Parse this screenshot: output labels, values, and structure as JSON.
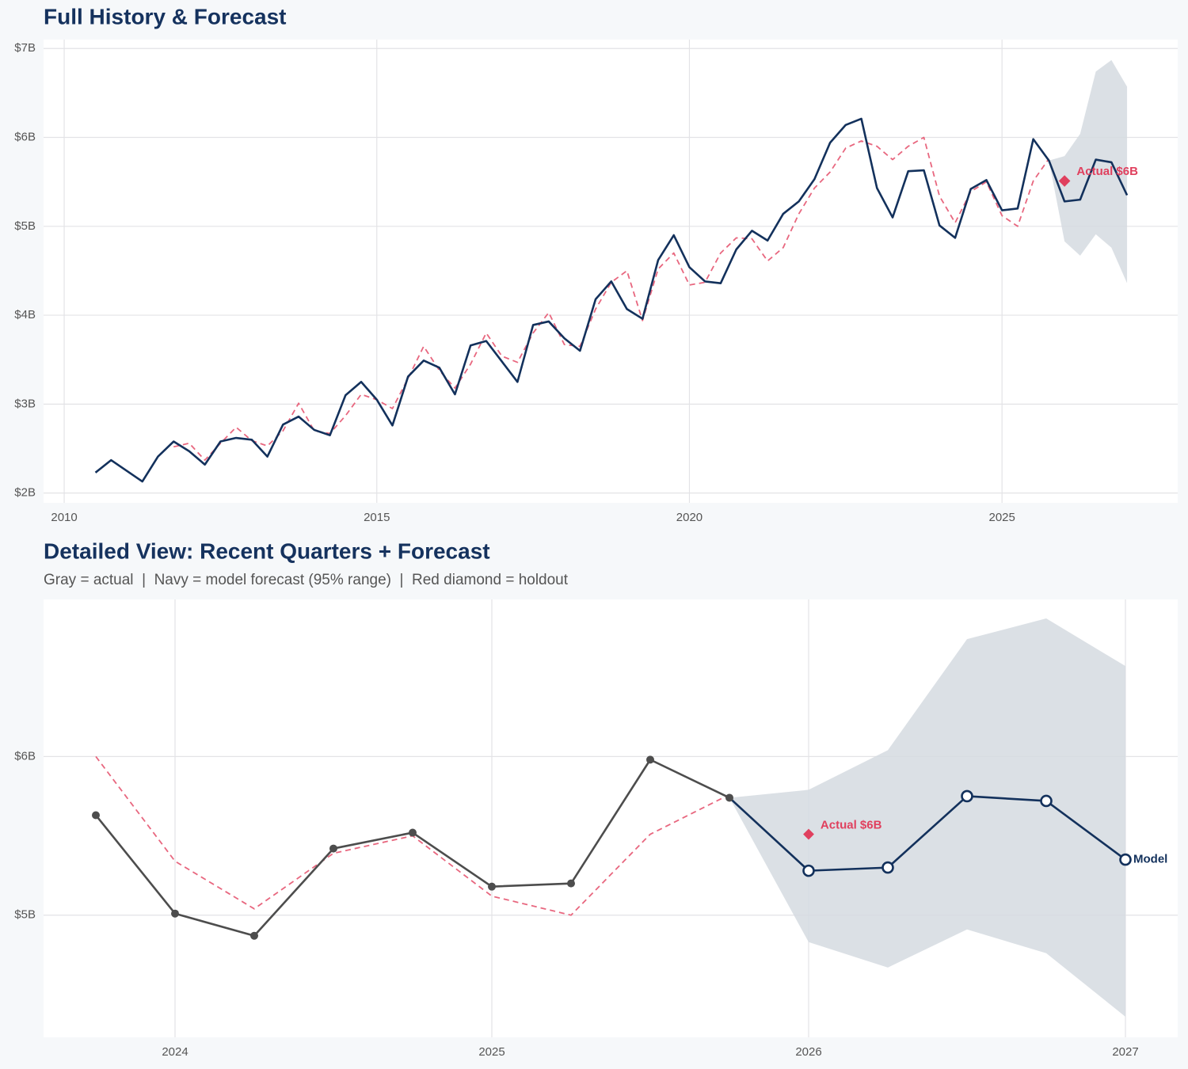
{
  "chart_data": [
    {
      "type": "line",
      "title": "Full History & Forecast",
      "xlim": [
        2009.67,
        2027.81
      ],
      "xticks": [
        2010,
        2015,
        2020,
        2025
      ],
      "ylim": [
        1.89,
        7.1
      ],
      "yticks": [
        {
          "value": 2,
          "label": "$2B"
        },
        {
          "value": 3,
          "label": "$3B"
        },
        {
          "value": 4,
          "label": "$4B"
        },
        {
          "value": 5,
          "label": "$5B"
        },
        {
          "value": 6,
          "label": "$6B"
        },
        {
          "value": 7,
          "label": "$7B"
        }
      ],
      "grid": true,
      "band": {
        "color": "#d5dae1",
        "x": [
          2025.75,
          2026,
          2026.25,
          2026.5,
          2026.75,
          2027
        ],
        "lower": [
          5.74,
          4.83,
          4.67,
          4.91,
          4.76,
          4.36
        ],
        "upper": [
          5.74,
          5.79,
          6.04,
          6.74,
          6.87,
          6.57
        ]
      },
      "series": [
        {
          "color": "#e8677f",
          "style": "dashed",
          "x": [
            2011.75,
            2012,
            2012.25,
            2012.5,
            2012.75,
            2013,
            2013.25,
            2013.5,
            2013.75,
            2014,
            2014.25,
            2014.5,
            2014.75,
            2015,
            2015.25,
            2015.5,
            2015.75,
            2016,
            2016.25,
            2016.5,
            2016.75,
            2017,
            2017.25,
            2017.5,
            2017.75,
            2018,
            2018.25,
            2018.5,
            2018.75,
            2019,
            2019.25,
            2019.5,
            2019.75,
            2020,
            2020.25,
            2020.5,
            2020.75,
            2021,
            2021.25,
            2021.5,
            2021.75,
            2022,
            2022.25,
            2022.5,
            2022.75,
            2023,
            2023.25,
            2023.5,
            2023.75,
            2024,
            2024.25,
            2024.5,
            2024.75,
            2025,
            2025.25,
            2025.5,
            2025.75
          ],
          "values": [
            2.52,
            2.56,
            2.37,
            2.56,
            2.74,
            2.59,
            2.53,
            2.7,
            3.01,
            2.7,
            2.67,
            2.87,
            3.11,
            3.05,
            2.95,
            3.29,
            3.65,
            3.38,
            3.18,
            3.45,
            3.8,
            3.54,
            3.47,
            3.8,
            4.03,
            3.67,
            3.65,
            4.07,
            4.37,
            4.5,
            3.94,
            4.52,
            4.7,
            4.34,
            4.37,
            4.7,
            4.87,
            4.86,
            4.61,
            4.76,
            5.14,
            5.43,
            5.61,
            5.88,
            5.96,
            5.9,
            5.75,
            5.9,
            6.0,
            5.34,
            5.04,
            5.39,
            5.5,
            5.12,
            5.0,
            5.51,
            5.76
          ]
        },
        {
          "color": "#13315c",
          "x": [
            2010.5,
            2010.75,
            2011,
            2011.25,
            2011.5,
            2011.75,
            2012,
            2012.25,
            2012.5,
            2012.75,
            2013,
            2013.25,
            2013.5,
            2013.75,
            2014,
            2014.25,
            2014.5,
            2014.75,
            2015,
            2015.25,
            2015.5,
            2015.75,
            2016,
            2016.25,
            2016.5,
            2016.75,
            2017,
            2017.25,
            2017.5,
            2017.75,
            2018,
            2018.25,
            2018.5,
            2018.75,
            2019,
            2019.25,
            2019.5,
            2019.75,
            2020,
            2020.25,
            2020.5,
            2020.75,
            2021,
            2021.25,
            2021.5,
            2021.75,
            2022,
            2022.25,
            2022.5,
            2022.75,
            2023,
            2023.25,
            2023.5,
            2023.75,
            2024,
            2024.25,
            2024.5,
            2024.75,
            2025,
            2025.25,
            2025.5,
            2025.75,
            2026,
            2026.25,
            2026.5,
            2026.75,
            2027
          ],
          "values": [
            2.23,
            2.37,
            2.25,
            2.13,
            2.41,
            2.58,
            2.47,
            2.32,
            2.58,
            2.62,
            2.6,
            2.41,
            2.77,
            2.86,
            2.71,
            2.65,
            3.1,
            3.25,
            3.05,
            2.76,
            3.31,
            3.49,
            3.41,
            3.11,
            3.66,
            3.71,
            3.48,
            3.25,
            3.89,
            3.93,
            3.74,
            3.6,
            4.18,
            4.38,
            4.07,
            3.96,
            4.62,
            4.9,
            4.54,
            4.38,
            4.36,
            4.74,
            4.95,
            4.84,
            5.14,
            5.28,
            5.53,
            5.94,
            6.14,
            6.21,
            5.43,
            5.1,
            5.62,
            5.63,
            5.01,
            4.87,
            5.42,
            5.52,
            5.18,
            5.2,
            5.98,
            5.74,
            5.28,
            5.3,
            5.75,
            5.72,
            5.35
          ]
        }
      ],
      "annotation": {
        "x": 2026,
        "value": 5.51,
        "label": "Actual $6B",
        "color": "#e0405e"
      }
    },
    {
      "type": "line",
      "title": "Detailed View: Recent Quarters + Forecast",
      "subtitle": "Gray = actual  |  Navy = model forecast (95% range)  |  Red diamond = holdout",
      "xlim": [
        2023.585,
        2027.165
      ],
      "xticks": [
        2024,
        2025,
        2026,
        2027
      ],
      "ylim": [
        4.23,
        6.99
      ],
      "yticks": [
        {
          "value": 5,
          "label": "$5B"
        },
        {
          "value": 6,
          "label": "$6B"
        }
      ],
      "grid": true,
      "band": {
        "color": "#d5dae1",
        "x": [
          2025.75,
          2026,
          2026.25,
          2026.5,
          2026.75,
          2027
        ],
        "lower": [
          5.74,
          4.83,
          4.67,
          4.91,
          4.76,
          4.36
        ],
        "upper": [
          5.74,
          5.79,
          6.04,
          6.74,
          6.87,
          6.57
        ]
      },
      "series": [
        {
          "color": "#e8677f",
          "style": "dashed",
          "x": [
            2023.75,
            2024,
            2024.25,
            2024.5,
            2024.75,
            2025,
            2025.25,
            2025.5,
            2025.75
          ],
          "values": [
            6.0,
            5.34,
            5.04,
            5.39,
            5.5,
            5.12,
            5.0,
            5.51,
            5.76
          ]
        },
        {
          "color": "#13315c",
          "marker": "open",
          "name": "Model",
          "x": [
            2025.75,
            2026,
            2026.25,
            2026.5,
            2026.75,
            2027
          ],
          "values": [
            5.74,
            5.28,
            5.3,
            5.75,
            5.72,
            5.35
          ]
        },
        {
          "color": "#4d4d4d",
          "marker": "filled",
          "x": [
            2023.75,
            2024,
            2024.25,
            2024.5,
            2024.75,
            2025,
            2025.25,
            2025.5,
            2025.75
          ],
          "values": [
            5.63,
            5.01,
            4.87,
            5.42,
            5.52,
            5.18,
            5.2,
            5.98,
            5.74
          ]
        }
      ],
      "annotation": {
        "x": 2026,
        "value": 5.51,
        "label": "Actual $6B",
        "color": "#e0405e"
      }
    }
  ]
}
